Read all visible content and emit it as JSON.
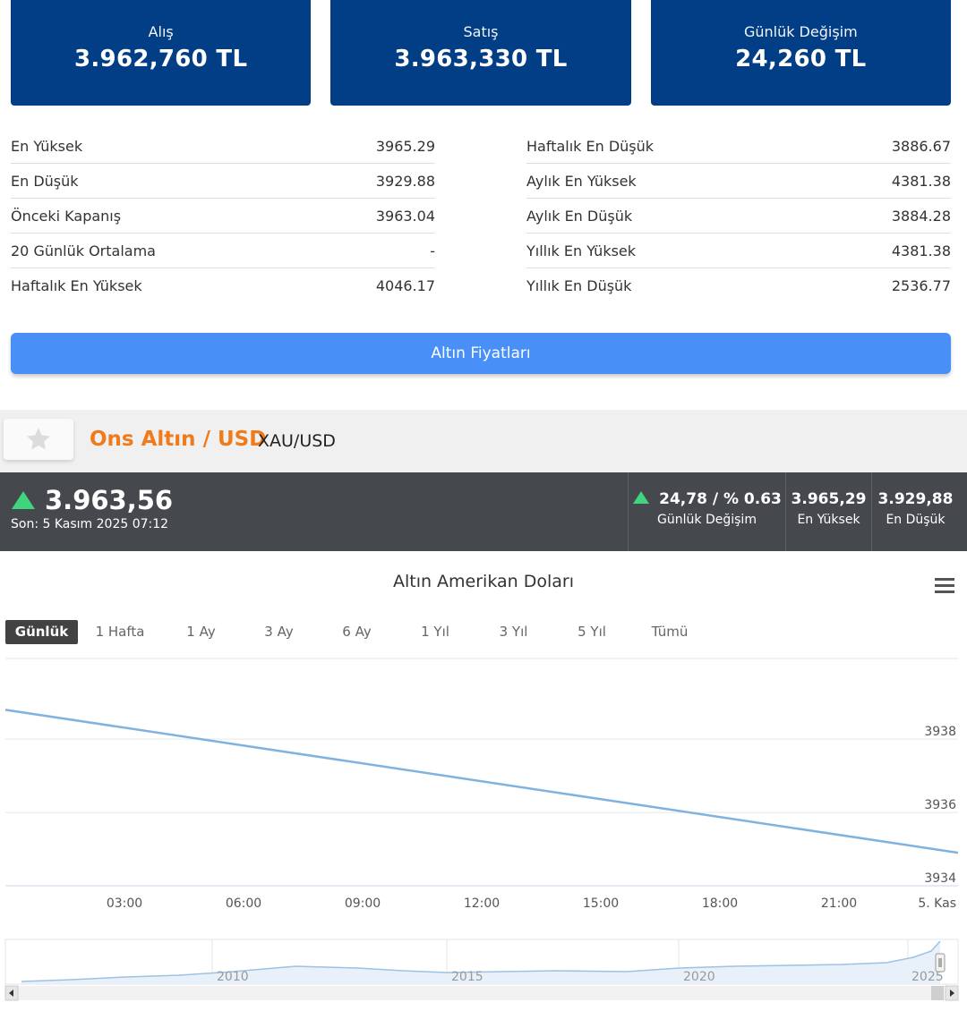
{
  "cards": [
    {
      "label": "Alış",
      "value": "3.962,760 TL"
    },
    {
      "label": "Satış",
      "value": "3.963,330 TL"
    },
    {
      "label": "Günlük Değişim",
      "value": "24,260 TL"
    }
  ],
  "stats_left": [
    {
      "label": "En Yüksek",
      "value": "3965.29"
    },
    {
      "label": "En Düşük",
      "value": "3929.88"
    },
    {
      "label": "Önceki Kapanış",
      "value": "3963.04"
    },
    {
      "label": "20 Günlük Ortalama",
      "value": "-"
    },
    {
      "label": "Haftalık En Yüksek",
      "value": "4046.17"
    }
  ],
  "stats_right": [
    {
      "label": "Haftalık En Düşük",
      "value": "3886.67"
    },
    {
      "label": "Aylık En Yüksek",
      "value": "4381.38"
    },
    {
      "label": "Aylık En Düşük",
      "value": "3884.28"
    },
    {
      "label": "Yıllık En Yüksek",
      "value": "4381.38"
    },
    {
      "label": "Yıllık En Düşük",
      "value": "2536.77"
    }
  ],
  "button_label": "Altın Fiyatları",
  "instrument": {
    "title": "Ons Altın / USD",
    "code": "XAU/USD",
    "icon": "star-icon"
  },
  "quote": {
    "price": "3.963,56",
    "last_update": "Son: 5 Kasım 2025 07:12",
    "change_value": "24,78 / % 0.63",
    "change_label": "Günlük Değişim",
    "high_value": "3.965,29",
    "high_label": "En Yüksek",
    "low_value": "3.929,88",
    "low_label": "En Düşük",
    "up_color": "#3fd47d"
  },
  "chart_data": {
    "type": "line",
    "title": "Altın Amerikan Doları",
    "range_buttons": [
      "Günlük",
      "1 Hafta",
      "1 Ay",
      "3 Ay",
      "6 Ay",
      "1 Yıl",
      "3 Yıl",
      "5 Yıl",
      "Tümü"
    ],
    "active_range": "Günlük",
    "x_ticks": [
      "03:00",
      "06:00",
      "09:00",
      "12:00",
      "15:00",
      "18:00",
      "21:00",
      "5. Kas"
    ],
    "y_ticks": [
      3938,
      3936,
      3934
    ],
    "ylim": [
      3934,
      3940.2
    ],
    "grid": true,
    "line_color": "#7fb2de",
    "series": [
      {
        "x": [
          "00:00",
          "24:00"
        ],
        "values": [
          3938.8,
          3934.9
        ]
      }
    ],
    "navigator": {
      "year_labels": [
        "2010",
        "2015",
        "2020",
        "2025"
      ]
    }
  }
}
